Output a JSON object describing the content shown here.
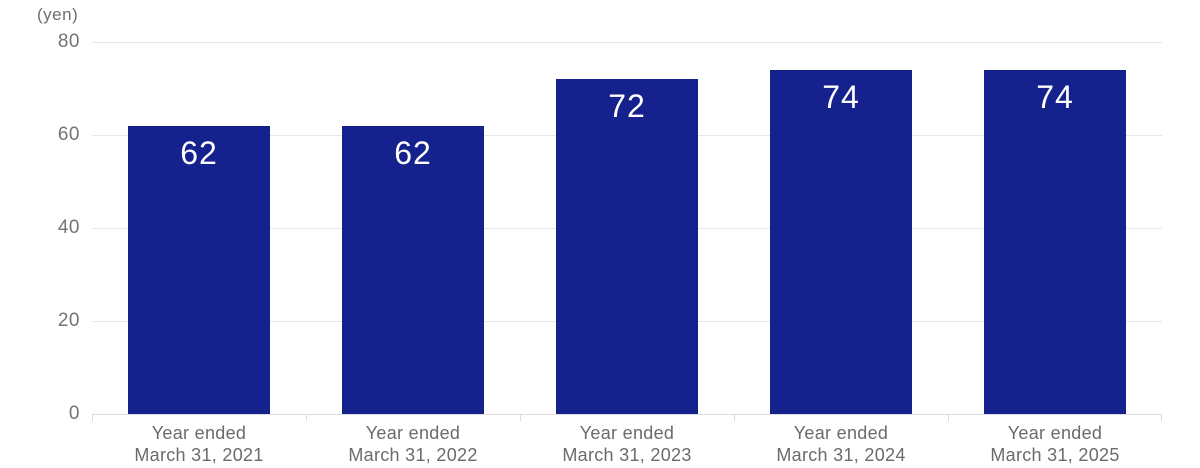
{
  "chart_data": {
    "type": "bar",
    "title": "",
    "unit_label": "(yen)",
    "categories": [
      {
        "line1": "Year ended",
        "line2": "March 31, 2021"
      },
      {
        "line1": "Year ended",
        "line2": "March 31, 2022"
      },
      {
        "line1": "Year ended",
        "line2": "March 31, 2023"
      },
      {
        "line1": "Year ended",
        "line2": "March 31, 2024"
      },
      {
        "line1": "Year ended",
        "line2": "March 31, 2025"
      }
    ],
    "values": [
      62,
      62,
      72,
      74,
      74
    ],
    "xlabel": "",
    "ylabel": "(yen)",
    "ylim": [
      0,
      80
    ],
    "yticks": [
      0,
      20,
      40,
      60,
      80
    ],
    "grid": true,
    "legend": "none",
    "bar_width_fraction": 0.664,
    "colors": {
      "bar": "#15218c",
      "value_label": "#ffffff",
      "gridline": "#e7e7e7",
      "axis_line": "#dcdcdc",
      "tick_mark": "#dcdcdc",
      "tick_text": "#747474",
      "category_text": "#6b6b6b"
    }
  }
}
